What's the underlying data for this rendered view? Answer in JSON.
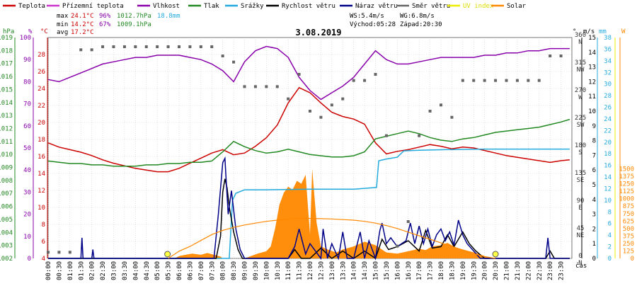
{
  "chart_data": {
    "type": "line",
    "title": "3.08.2019",
    "legend": [
      {
        "label": "Teplota",
        "color": "#cc0000"
      },
      {
        "label": "Přízemní teplota",
        "color": "#cc33cc"
      },
      {
        "label": "Vlhkost",
        "color": "#8800aa"
      },
      {
        "label": "Tlak",
        "color": "#228822"
      },
      {
        "label": "Srážky",
        "color": "#22aadd"
      },
      {
        "label": "Rychlost větru",
        "color": "#000000"
      },
      {
        "label": "Náraz větru",
        "color": "#000088"
      },
      {
        "label": "Směr větru",
        "color": "#666666"
      },
      {
        "label": "UV index",
        "color": "#eeee00"
      },
      {
        "label": "Solar",
        "color": "#ff8800"
      }
    ],
    "stats": {
      "max_label": "max",
      "max_temp": "24.1°C",
      "max_hum": "96%",
      "max_press": "1012.7hPa",
      "precip_total": "18.8mm",
      "min_label": "min",
      "min_temp": "14.2°C",
      "min_hum": "67%",
      "min_press": "1009.1hPa",
      "avg_label": "avg",
      "avg_temp": "17.2°C",
      "ws": "WS:5.4m/s",
      "wg": "WG:6.8m/s",
      "sunrise": "Východ:05:28",
      "sunset": "Západ:20:30"
    },
    "x_label": "čas",
    "x_ticks": [
      "00:00",
      "00:30",
      "01:00",
      "01:30",
      "02:00",
      "02:30",
      "03:00",
      "03:30",
      "04:00",
      "04:30",
      "05:00",
      "05:30",
      "06:00",
      "06:30",
      "07:00",
      "07:30",
      "08:00",
      "08:30",
      "09:00",
      "09:30",
      "10:00",
      "10:30",
      "11:00",
      "11:30",
      "12:00",
      "12:30",
      "13:00",
      "13:30",
      "14:00",
      "14:30",
      "15:00",
      "15:30",
      "16:00",
      "16:30",
      "17:00",
      "17:30",
      "18:00",
      "18:30",
      "19:00",
      "19:30",
      "20:00",
      "20:30",
      "21:00",
      "21:30",
      "22:00",
      "22:30",
      "23:00",
      "23:30"
    ],
    "axes": {
      "pressure": {
        "unit": "hPa",
        "color": "#228822",
        "ticks": [
          1002,
          1003,
          1004,
          1005,
          1006,
          1007,
          1008,
          1009,
          1010,
          1011,
          1012,
          1013,
          1014,
          1015,
          1016,
          1017,
          1018,
          1019
        ],
        "range": [
          1002,
          1019
        ]
      },
      "humidity": {
        "unit": "%",
        "color": "#8800aa",
        "ticks": [
          0,
          10,
          20,
          30,
          40,
          50,
          60,
          70,
          80,
          90,
          100
        ],
        "range": [
          0,
          100
        ]
      },
      "temperature": {
        "unit": "°C",
        "color": "#cc0000",
        "ticks": [
          4,
          6,
          8,
          10,
          12,
          14,
          16,
          18,
          20,
          22,
          24,
          26,
          28
        ],
        "range": [
          4,
          30
        ]
      },
      "direction": {
        "unit": "°",
        "color": "#666666",
        "ticks": [
          0,
          45,
          90,
          135,
          180,
          225,
          270,
          315,
          360
        ],
        "tick_labels": [
          "N",
          "NE",
          "E",
          "SE",
          "S",
          "SW",
          "W",
          "NW",
          "N"
        ],
        "range": [
          0,
          360
        ]
      },
      "wind": {
        "unit": "m/s",
        "color": "#000000",
        "ticks": [
          0,
          1,
          2,
          3,
          4,
          5,
          6,
          7,
          8,
          9,
          10,
          11,
          12,
          13,
          14,
          15
        ],
        "range": [
          0,
          15
        ]
      },
      "precip": {
        "unit": "mm",
        "color": "#22aadd",
        "ticks": [
          0,
          2,
          4,
          6,
          8,
          10,
          12,
          14,
          16,
          18,
          20,
          22,
          24,
          26,
          28,
          30,
          32,
          34,
          36,
          38
        ],
        "range": [
          0,
          38
        ]
      },
      "solar": {
        "unit": "W",
        "color": "#ff8800",
        "ticks": [
          0,
          125,
          250,
          375,
          500,
          625,
          750,
          875,
          1000,
          1125,
          1250,
          1375,
          1500
        ],
        "range": [
          0,
          3700
        ]
      },
      "uv": {
        "unit": "",
        "color": "#eeee00",
        "ticks": [
          0,
          1,
          2,
          3,
          4,
          5,
          6,
          7,
          8,
          9,
          10,
          11,
          12,
          13,
          14,
          15
        ],
        "range": [
          0,
          15
        ]
      }
    },
    "series": [
      {
        "name": "Teplota",
        "axis": "temperature",
        "color": "#cc0000",
        "x": [
          0,
          0.5,
          1,
          1.5,
          2,
          2.5,
          3,
          3.5,
          4,
          4.5,
          5,
          5.5,
          6,
          6.5,
          7,
          7.5,
          8,
          8.5,
          9,
          9.5,
          10,
          10.5,
          11,
          11.5,
          12,
          12.5,
          13,
          13.5,
          14,
          14.5,
          15,
          15.5,
          16,
          16.5,
          17,
          17.5,
          18,
          18.5,
          19,
          19.5,
          20,
          20.5,
          21,
          21.5,
          22,
          22.5,
          23,
          23.5,
          23.9
        ],
        "y": [
          17.6,
          17.1,
          16.8,
          16.5,
          16.1,
          15.6,
          15.2,
          14.9,
          14.6,
          14.4,
          14.2,
          14.2,
          14.6,
          15.2,
          15.8,
          16.4,
          16.8,
          16.2,
          16.4,
          17.2,
          18.2,
          19.7,
          22.3,
          24.1,
          23.5,
          22.3,
          21.2,
          20.7,
          20.4,
          19.8,
          17.6,
          16.3,
          16.6,
          16.8,
          17.1,
          17.4,
          17.2,
          16.9,
          17.1,
          17.0,
          16.7,
          16.4,
          16.1,
          15.9,
          15.7,
          15.5,
          15.3,
          15.5,
          15.6
        ]
      },
      {
        "name": "Vlhkost",
        "axis": "humidity",
        "color": "#8800aa",
        "x": [
          0,
          0.5,
          1,
          1.5,
          2,
          2.5,
          3,
          3.5,
          4,
          4.5,
          5,
          5.5,
          6,
          6.5,
          7,
          7.5,
          8,
          8.5,
          9,
          9.5,
          10,
          10.5,
          11,
          11.5,
          12,
          12.5,
          13,
          13.5,
          14,
          14.5,
          15,
          15.5,
          16,
          16.5,
          17,
          17.5,
          18,
          18.5,
          19,
          19.5,
          20,
          20.5,
          21,
          21.5,
          22,
          22.5,
          23,
          23.5,
          23.9
        ],
        "y": [
          81,
          80,
          82,
          84,
          86,
          88,
          89,
          90,
          91,
          91,
          92,
          92,
          92,
          91,
          90,
          88,
          85,
          80,
          89,
          94,
          96,
          95,
          91,
          82,
          76,
          72,
          75,
          78,
          82,
          88,
          94,
          90,
          88,
          88,
          89,
          90,
          91,
          91,
          91,
          91,
          92,
          92,
          93,
          93,
          94,
          94,
          95,
          95,
          95
        ]
      },
      {
        "name": "Tlak",
        "axis": "pressure",
        "color": "#228822",
        "x": [
          0,
          0.5,
          1,
          1.5,
          2,
          2.5,
          3,
          3.5,
          4,
          4.5,
          5,
          5.5,
          6,
          6.5,
          7,
          7.5,
          8,
          8.5,
          9,
          9.5,
          10,
          10.5,
          11,
          11.5,
          12,
          12.5,
          13,
          13.5,
          14,
          14.5,
          15,
          15.5,
          16,
          16.5,
          17,
          17.5,
          18,
          18.5,
          19,
          19.5,
          20,
          20.5,
          21,
          21.5,
          22,
          22.5,
          23,
          23.5,
          23.9
        ],
        "y": [
          1009.5,
          1009.4,
          1009.3,
          1009.3,
          1009.2,
          1009.2,
          1009.1,
          1009.1,
          1009.1,
          1009.2,
          1009.2,
          1009.3,
          1009.3,
          1009.4,
          1009.4,
          1009.5,
          1010.2,
          1011.0,
          1010.6,
          1010.3,
          1010.1,
          1010.2,
          1010.4,
          1010.2,
          1010.0,
          1009.9,
          1009.8,
          1009.8,
          1009.9,
          1010.2,
          1011.2,
          1011.4,
          1011.6,
          1011.8,
          1011.6,
          1011.3,
          1011.1,
          1011.0,
          1011.2,
          1011.3,
          1011.5,
          1011.7,
          1011.8,
          1011.9,
          1012.0,
          1012.1,
          1012.3,
          1012.5,
          1012.7
        ]
      },
      {
        "name": "Srážky",
        "axis": "precip",
        "color": "#22aadd",
        "x": [
          0,
          8.0,
          8.3,
          8.45,
          8.6,
          9.0,
          9.3,
          10.0,
          12.0,
          14.0,
          15.05,
          15.15,
          15.5,
          16.0,
          16.3,
          17.0,
          18.0,
          20.0,
          23.9
        ],
        "y": [
          0,
          0,
          0,
          10.0,
          11.2,
          11.8,
          11.8,
          11.8,
          11.9,
          11.9,
          12.2,
          16.8,
          17.1,
          17.4,
          18.5,
          18.6,
          18.7,
          18.8,
          18.8
        ]
      },
      {
        "name": "Rychlost větru",
        "axis": "wind",
        "color": "#000000",
        "x": [
          0,
          7.7,
          7.9,
          8.0,
          8.1,
          8.2,
          8.3,
          8.5,
          8.7,
          8.9,
          9.0,
          9.5,
          11.0,
          11.3,
          11.6,
          12.0,
          12.5,
          13.0,
          13.5,
          14.0,
          14.5,
          15.0,
          15.3,
          15.6,
          16.0,
          16.5,
          17.0,
          17.3,
          17.6,
          18.0,
          18.3,
          18.6,
          19.0,
          19.3,
          19.6,
          20.0,
          20.2,
          22.8,
          23.0,
          23.2,
          23.9
        ],
        "y": [
          0,
          0,
          1.5,
          4.5,
          5.4,
          4.8,
          3.5,
          1.8,
          0.6,
          0,
          0,
          0,
          0,
          0.6,
          0,
          0,
          0.7,
          0,
          0.5,
          0,
          0.5,
          0,
          1.3,
          0.6,
          0.8,
          1.2,
          0.5,
          1.9,
          0.7,
          0.8,
          1.6,
          0.8,
          1.8,
          1.0,
          0.5,
          0,
          0,
          0,
          0.5,
          0,
          0
        ]
      },
      {
        "name": "Náraz větru",
        "axis": "wind",
        "color": "#000088",
        "x": [
          0,
          1.5,
          1.55,
          1.6,
          1.8,
          2.0,
          2.05,
          2.1,
          7.6,
          7.8,
          8.0,
          8.1,
          8.15,
          8.25,
          8.4,
          8.6,
          8.8,
          9.0,
          11.0,
          11.3,
          11.5,
          11.8,
          12.0,
          12.5,
          12.6,
          12.8,
          13.0,
          13.3,
          13.5,
          13.7,
          14.0,
          14.3,
          14.5,
          14.7,
          15.0,
          15.2,
          15.3,
          15.5,
          15.7,
          16.0,
          16.4,
          16.6,
          16.8,
          17.0,
          17.2,
          17.4,
          17.6,
          17.8,
          18.0,
          18.2,
          18.4,
          18.6,
          18.8,
          19.0,
          19.2,
          19.5,
          19.8,
          20.0,
          22.8,
          22.9,
          23.0,
          23.9
        ],
        "y": [
          0,
          0,
          1.4,
          0,
          0,
          0,
          0.6,
          0,
          0,
          3.0,
          6.5,
          6.8,
          5.5,
          3.0,
          4.6,
          2.0,
          0.6,
          0,
          0,
          0.8,
          2.0,
          0.3,
          1.0,
          0,
          2.0,
          0,
          1.0,
          0,
          1.8,
          0,
          0,
          1.8,
          0,
          1.2,
          0,
          1.9,
          2.4,
          1.0,
          1.4,
          0.8,
          1.2,
          2.4,
          1.0,
          2.2,
          1.0,
          2.0,
          0.8,
          1.6,
          2.0,
          1.2,
          1.8,
          0.9,
          2.6,
          1.6,
          1.0,
          0.5,
          0,
          0,
          0,
          1.4,
          0,
          0
        ]
      },
      {
        "name": "Solar",
        "axis": "solar",
        "color": "#ff8800",
        "x": [
          5.5,
          6,
          6.5,
          7,
          7.5,
          8,
          8.5,
          9,
          9.5,
          10,
          10.5,
          11,
          11.5,
          12,
          12.5,
          13,
          13.5,
          14,
          14.5,
          15,
          15.5,
          16,
          16.5,
          17,
          17.5,
          18,
          18.5,
          19,
          19.5,
          20,
          20.5
        ],
        "y": [
          0,
          120,
          200,
          300,
          400,
          470,
          520,
          560,
          590,
          620,
          640,
          660,
          670,
          670,
          665,
          660,
          650,
          640,
          620,
          590,
          550,
          500,
          440,
          380,
          320,
          260,
          200,
          140,
          80,
          30,
          0
        ]
      },
      {
        "name": "Solar area",
        "axis": "solar",
        "color": "#ff8800",
        "x": [
          5.8,
          6,
          6.3,
          6.6,
          7.0,
          7.3,
          7.6,
          7.9,
          8.0,
          9.0,
          9.3,
          9.6,
          10.0,
          10.2,
          10.4,
          10.6,
          10.8,
          11.0,
          11.2,
          11.4,
          11.6,
          11.8,
          12.0,
          12.1,
          12.3,
          12.5,
          12.8,
          13.2,
          13.5,
          14.0,
          14.5,
          15.0,
          15.5,
          16.0,
          16.5,
          17.0,
          17.3,
          17.6,
          18.0,
          18.3,
          18.7,
          19.0,
          19.3,
          19.6,
          20.0,
          20.3
        ],
        "y": [
          0,
          40,
          60,
          80,
          60,
          90,
          60,
          30,
          0,
          0,
          40,
          80,
          120,
          200,
          500,
          900,
          1100,
          1200,
          1150,
          1300,
          1250,
          1400,
          400,
          1500,
          600,
          200,
          150,
          100,
          150,
          200,
          280,
          220,
          100,
          80,
          120,
          160,
          140,
          200,
          220,
          260,
          180,
          150,
          120,
          90,
          40,
          0
        ]
      },
      {
        "name": "Směr větru",
        "axis": "direction",
        "color": "#666666",
        "x": [
          0,
          0.5,
          1,
          1.5,
          2,
          2.5,
          3,
          3.5,
          4,
          4.5,
          5,
          5.5,
          6,
          6.5,
          7,
          7.5,
          8,
          8.5,
          9,
          9.5,
          10,
          10.5,
          11,
          11.5,
          12,
          12.5,
          13,
          13.5,
          14,
          14.5,
          15,
          15.5,
          16,
          16.5,
          17,
          17.5,
          18,
          18.5,
          19,
          19.5,
          20,
          20.5,
          21,
          21.5,
          22,
          22.5,
          23,
          23.5
        ],
        "y": [
          10,
          10,
          10,
          340,
          340,
          345,
          345,
          345,
          345,
          345,
          345,
          345,
          345,
          345,
          345,
          345,
          330,
          320,
          280,
          280,
          280,
          280,
          260,
          300,
          240,
          230,
          250,
          260,
          290,
          290,
          300,
          200,
          20,
          60,
          200,
          240,
          250,
          230,
          290,
          290,
          290,
          290,
          290,
          290,
          290,
          290,
          330,
          330
        ]
      }
    ]
  }
}
